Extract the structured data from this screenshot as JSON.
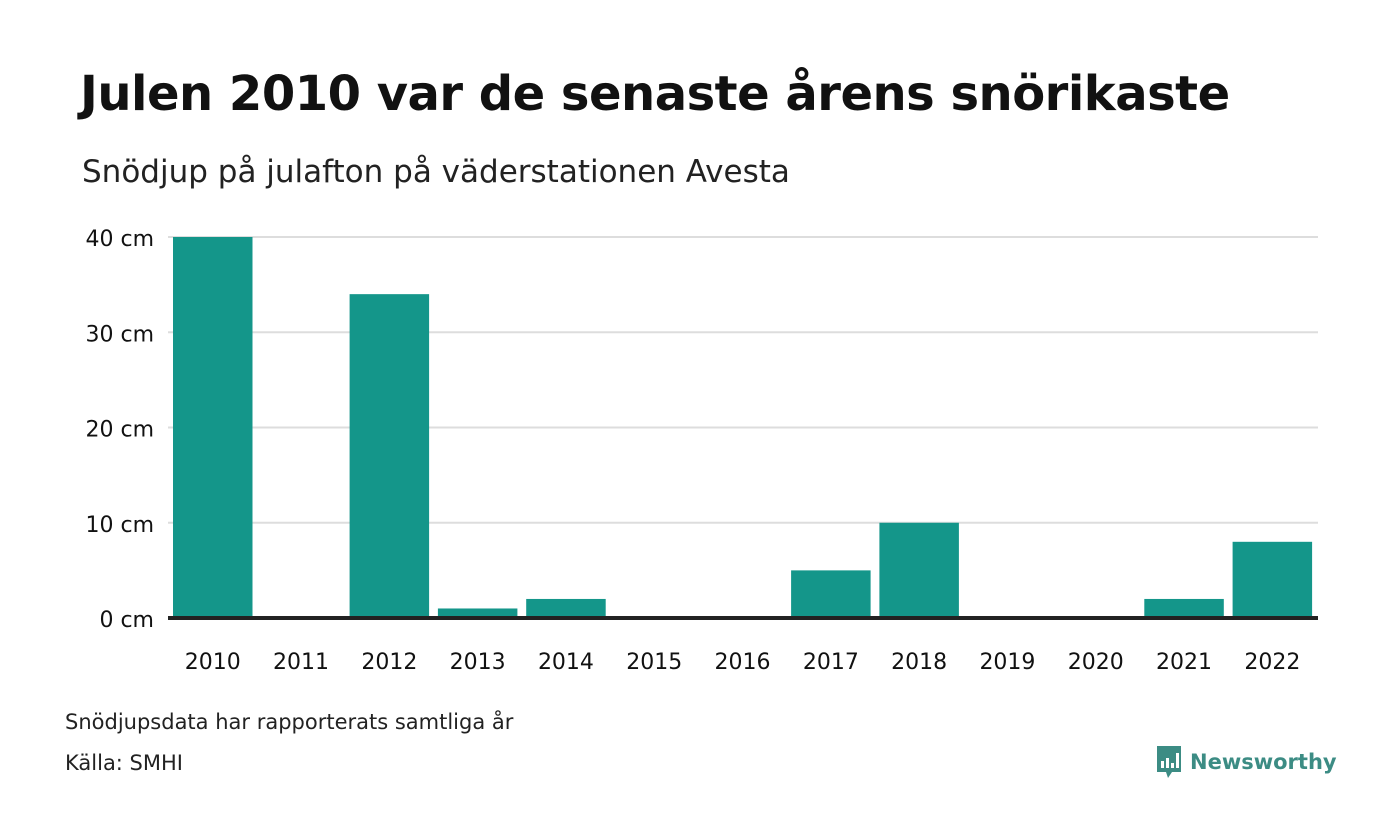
{
  "title": "Julen 2010 var de senaste årens snörikaste",
  "subtitle": "Snödjup på julafton på väderstationen Avesta",
  "note": "Snödjupsdata har rapporterats samtliga år",
  "source": "Källa: SMHI",
  "brand": {
    "name": "Newsworthy",
    "icon": "newsworthy-logo-icon",
    "color": "#3c8c84"
  },
  "colors": {
    "bar": "#14968a",
    "grid": "#dddddd",
    "baseline": "#222222",
    "text": "#111111"
  },
  "chart_data": {
    "type": "bar",
    "categories": [
      "2010",
      "2011",
      "2012",
      "2013",
      "2014",
      "2015",
      "2016",
      "2017",
      "2018",
      "2019",
      "2020",
      "2021",
      "2022"
    ],
    "values": [
      40,
      0,
      34,
      1,
      2,
      0,
      0,
      5,
      10,
      0,
      0,
      2,
      8
    ],
    "unit": "cm",
    "ylim": [
      0,
      40
    ],
    "yticks": [
      0,
      10,
      20,
      30,
      40
    ],
    "ytick_labels": [
      "0 cm",
      "10 cm",
      "20 cm",
      "30 cm",
      "40 cm"
    ],
    "grid": true,
    "legend": "none"
  }
}
